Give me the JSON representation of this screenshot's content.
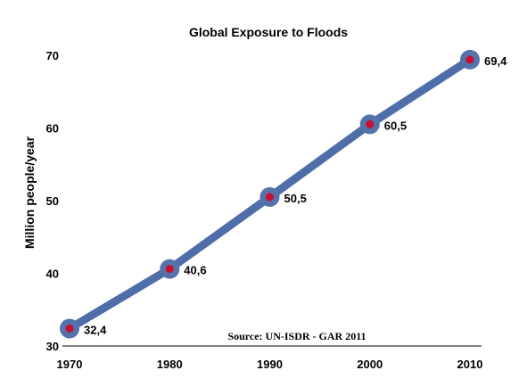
{
  "chart_data": {
    "type": "line",
    "title": "Global Exposure to Floods",
    "xlabel": "",
    "ylabel": "Million people/year",
    "x": [
      1970,
      1980,
      1990,
      2000,
      2010
    ],
    "x_tick_labels": [
      "1970",
      "1980",
      "1990",
      "2000",
      "2010"
    ],
    "y_ticks": [
      30,
      40,
      50,
      60,
      70
    ],
    "y_tick_labels": [
      "30",
      "40",
      "50",
      "60",
      "70"
    ],
    "ylim": [
      30,
      70
    ],
    "xlim": [
      1970,
      2010
    ],
    "series": [
      {
        "values": [
          32.4,
          40.6,
          50.5,
          60.5,
          69.4
        ],
        "data_labels": [
          "32,4",
          "40,6",
          "50,5",
          "60,5",
          "69,4"
        ]
      }
    ],
    "annotation": "Source: UN-ISDR - GAR 2011",
    "grid": false,
    "legend": "none",
    "colors": {
      "line": "#4f6ea9",
      "marker_outer": "#5572aa",
      "marker_inner": "#c8102e"
    }
  }
}
